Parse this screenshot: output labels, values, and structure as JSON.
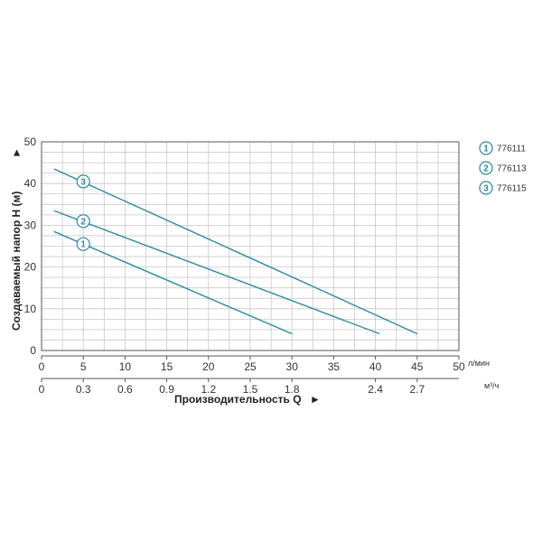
{
  "colors": {
    "line": "#2b8aa0",
    "grid": "#c8c8c8",
    "axis": "#555555",
    "text": "#333333"
  },
  "chart_data": {
    "type": "line",
    "ylabel": "Создаваемый напор H (м)",
    "xlabel": "Производительность Q",
    "x_unit": "л/мин",
    "x2_unit": "м³/ч",
    "xlim": [
      0,
      50
    ],
    "ylim": [
      0,
      50
    ],
    "grid": true,
    "legend_position": "right",
    "x_ticks": [
      "0",
      "5",
      "10",
      "15",
      "20",
      "25",
      "30",
      "35",
      "40",
      "45",
      "50"
    ],
    "y_ticks": [
      "0",
      "10",
      "20",
      "30",
      "40",
      "50"
    ],
    "x2_ticks": [
      {
        "value": 0,
        "label": "0"
      },
      {
        "value": 5,
        "label": "0.3"
      },
      {
        "value": 10,
        "label": "0.6"
      },
      {
        "value": 15,
        "label": "0.9"
      },
      {
        "value": 20,
        "label": "1.2"
      },
      {
        "value": 25,
        "label": "1.5"
      },
      {
        "value": 30,
        "label": "1.8"
      },
      {
        "value": 40,
        "label": "2.4"
      },
      {
        "value": 45,
        "label": "2.7"
      }
    ],
    "series": [
      {
        "marker": "1",
        "name": "776111",
        "x": [
          1.5,
          30
        ],
        "y": [
          28.5,
          4
        ]
      },
      {
        "marker": "2",
        "name": "776113",
        "x": [
          1.5,
          40.5
        ],
        "y": [
          33.5,
          4
        ]
      },
      {
        "marker": "3",
        "name": "776115",
        "x": [
          1.5,
          45
        ],
        "y": [
          43.5,
          4
        ]
      }
    ],
    "markers": [
      {
        "label": "1",
        "x": 5,
        "y": 25.5
      },
      {
        "label": "2",
        "x": 5,
        "y": 31
      },
      {
        "label": "3",
        "x": 5,
        "y": 40.5
      }
    ]
  }
}
